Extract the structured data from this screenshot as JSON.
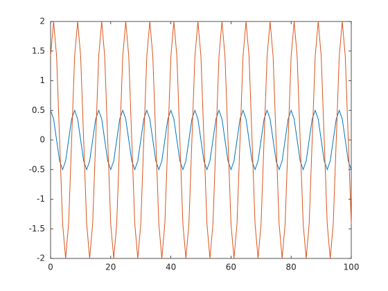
{
  "chart_data": {
    "type": "line",
    "x": [
      0,
      1,
      2,
      3,
      4,
      5,
      6,
      7,
      8,
      9,
      10,
      11,
      12,
      13,
      14,
      15,
      16,
      17,
      18,
      19,
      20,
      21,
      22,
      23,
      24,
      25,
      26,
      27,
      28,
      29,
      30,
      31,
      32,
      33,
      34,
      35,
      36,
      37,
      38,
      39,
      40,
      41,
      42,
      43,
      44,
      45,
      46,
      47,
      48,
      49,
      50,
      51,
      52,
      53,
      54,
      55,
      56,
      57,
      58,
      59,
      60,
      61,
      62,
      63,
      64,
      65,
      66,
      67,
      68,
      69,
      70,
      71,
      72,
      73,
      74,
      75,
      76,
      77,
      78,
      79,
      80,
      81,
      82,
      83,
      84,
      85,
      86,
      87,
      88,
      89,
      90,
      91,
      92,
      93,
      94,
      95,
      96,
      97,
      98,
      99,
      100
    ],
    "series": [
      {
        "color": "#0072bd",
        "values": [
          0.5,
          0.354,
          0,
          -0.354,
          -0.5,
          -0.354,
          0,
          0.354,
          0.5,
          0.354,
          0,
          -0.354,
          -0.5,
          -0.354,
          0,
          0.354,
          0.5,
          0.354,
          0,
          -0.354,
          -0.5,
          -0.354,
          0,
          0.354,
          0.5,
          0.354,
          0,
          -0.354,
          -0.5,
          -0.354,
          0,
          0.354,
          0.5,
          0.354,
          0,
          -0.354,
          -0.5,
          -0.354,
          0,
          0.354,
          0.5,
          0.354,
          0,
          -0.354,
          -0.5,
          -0.354,
          0,
          0.354,
          0.5,
          0.354,
          0,
          -0.354,
          -0.5,
          -0.354,
          0,
          0.354,
          0.5,
          0.354,
          0,
          -0.354,
          -0.5,
          -0.354,
          0,
          0.354,
          0.5,
          0.354,
          0,
          -0.354,
          -0.5,
          -0.354,
          0,
          0.354,
          0.5,
          0.354,
          0,
          -0.354,
          -0.5,
          -0.354,
          0,
          0.354,
          0.5,
          0.354,
          0,
          -0.354,
          -0.5,
          -0.354,
          0,
          0.354,
          0.5,
          0.354,
          0,
          -0.354,
          -0.5,
          -0.354,
          0,
          0.354,
          0.5,
          0.354,
          0,
          -0.354,
          -0.5
        ]
      },
      {
        "color": "#d95319",
        "values": [
          1.414,
          2,
          1.414,
          0,
          -1.414,
          -2,
          -1.414,
          0,
          1.414,
          2,
          1.414,
          0,
          -1.414,
          -2,
          -1.414,
          0,
          1.414,
          2,
          1.414,
          0,
          -1.414,
          -2,
          -1.414,
          0,
          1.414,
          2,
          1.414,
          0,
          -1.414,
          -2,
          -1.414,
          0,
          1.414,
          2,
          1.414,
          0,
          -1.414,
          -2,
          -1.414,
          0,
          1.414,
          2,
          1.414,
          0,
          -1.414,
          -2,
          -1.414,
          0,
          1.414,
          2,
          1.414,
          0,
          -1.414,
          -2,
          -1.414,
          0,
          1.414,
          2,
          1.414,
          0,
          -1.414,
          -2,
          -1.414,
          0,
          1.414,
          2,
          1.414,
          0,
          -1.414,
          -2,
          -1.414,
          0,
          1.414,
          2,
          1.414,
          0,
          -1.414,
          -2,
          -1.414,
          0,
          1.414,
          2,
          1.414,
          0,
          -1.414,
          -2,
          -1.414,
          0,
          1.414,
          2,
          1.414,
          0,
          -1.414,
          -2,
          -1.414,
          0,
          1.414,
          2,
          1.414,
          0,
          -1.414
        ]
      }
    ],
    "xlim": [
      0,
      100
    ],
    "xticks": [
      0,
      20,
      40,
      60,
      80,
      100
    ],
    "ylim": [
      -2,
      2
    ],
    "yticks": [
      -2,
      -1.5,
      -1,
      -0.5,
      0,
      0.5,
      1,
      1.5,
      2
    ],
    "grid": false
  }
}
